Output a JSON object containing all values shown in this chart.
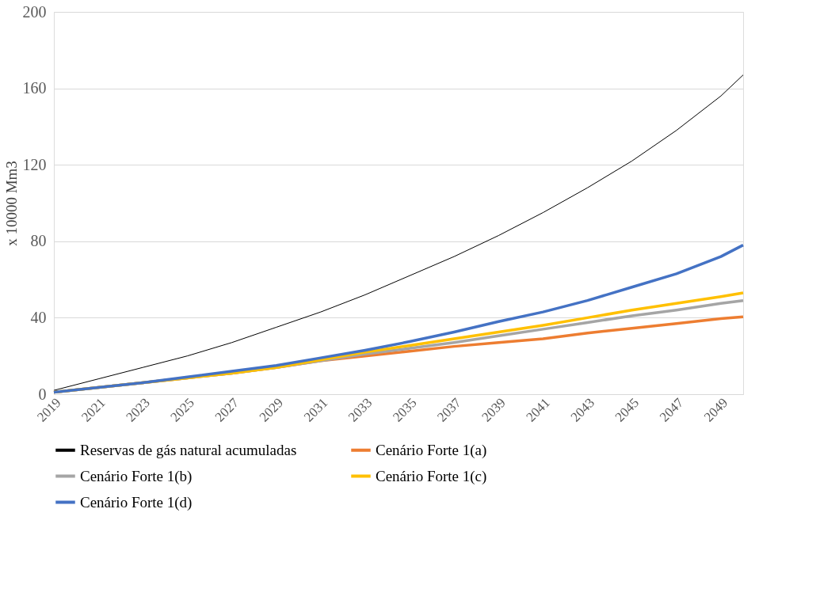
{
  "chart_data": {
    "type": "line",
    "ylabel": "x 10000 Mm3",
    "x": [
      2019,
      2021,
      2023,
      2025,
      2027,
      2029,
      2031,
      2033,
      2035,
      2037,
      2039,
      2041,
      2043,
      2045,
      2047,
      2049,
      2050
    ],
    "xlim": [
      2019,
      2050
    ],
    "xticks": [
      2019,
      2021,
      2023,
      2025,
      2027,
      2029,
      2031,
      2033,
      2035,
      2037,
      2039,
      2041,
      2043,
      2045,
      2047,
      2049
    ],
    "ylim": [
      0,
      200
    ],
    "yticks": [
      0,
      40,
      80,
      120,
      160,
      200
    ],
    "grid": "y",
    "legend": "bottom",
    "marker": "none",
    "line_style": "solid",
    "series": [
      {
        "name": "Reservas de gás natural acumuladas",
        "color": "#000000",
        "values": [
          2,
          8,
          14,
          20,
          27,
          35,
          43,
          52,
          62,
          72,
          83,
          95,
          108,
          122,
          138,
          156,
          167
        ]
      },
      {
        "name": "Cenário Forte 1(a)",
        "color": "#ed7d31",
        "values": [
          1,
          3.5,
          6,
          8.5,
          11,
          14,
          17.5,
          20,
          22.5,
          25,
          27,
          29,
          32,
          34.5,
          37,
          39.5,
          40.5
        ]
      },
      {
        "name": "Cenário Forte 1(b)",
        "color": "#a5a5a5",
        "values": [
          1,
          3.5,
          6,
          8.5,
          11,
          14,
          17.5,
          21,
          24,
          27,
          30.5,
          34,
          37.5,
          41,
          44,
          47.5,
          49
        ]
      },
      {
        "name": "Cenário Forte 1(c)",
        "color": "#ffc000",
        "values": [
          1,
          3.5,
          6,
          8.5,
          11,
          14,
          18,
          22,
          25.5,
          29,
          32.5,
          36,
          40,
          44,
          47.5,
          51,
          53
        ]
      },
      {
        "name": "Cenário Forte 1(d)",
        "color": "#4472c4",
        "values": [
          1,
          3.5,
          6,
          9,
          12,
          15,
          19,
          23,
          27.5,
          32.5,
          38,
          43,
          49,
          56,
          63,
          72,
          78
        ]
      }
    ]
  }
}
